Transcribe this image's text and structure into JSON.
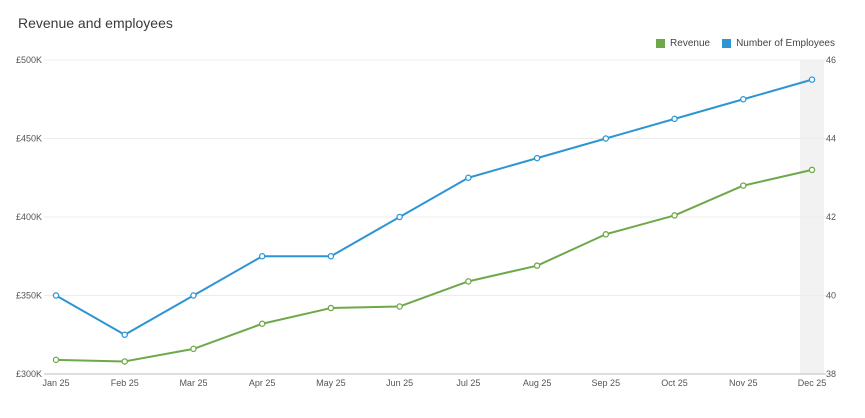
{
  "chart_data": {
    "type": "line",
    "title": "Revenue and employees",
    "categories": [
      "Jan 25",
      "Feb 25",
      "Mar 25",
      "Apr 25",
      "May 25",
      "Jun 25",
      "Jul 25",
      "Aug 25",
      "Sep 25",
      "Oct 25",
      "Nov 25",
      "Dec 25"
    ],
    "series": [
      {
        "name": "Revenue",
        "axis": "left",
        "color": "#6fa84a",
        "values": [
          309000,
          308000,
          316000,
          332000,
          342000,
          343000,
          359000,
          369000,
          389000,
          401000,
          420000,
          430000
        ]
      },
      {
        "name": "Number of Employees",
        "axis": "right",
        "color": "#2e95d4",
        "values": [
          40,
          39,
          40,
          41,
          41,
          42,
          43,
          43.5,
          44,
          44.5,
          45,
          45.5
        ]
      }
    ],
    "left_axis": {
      "ylim": [
        300000,
        500000
      ],
      "ticks": [
        "£300K",
        "£350K",
        "£400K",
        "£450K",
        "£500K"
      ]
    },
    "right_axis": {
      "ylim": [
        38,
        46
      ],
      "ticks": [
        "38",
        "40",
        "42",
        "44",
        "46"
      ]
    },
    "legend_position": "top-right",
    "grid": true
  }
}
